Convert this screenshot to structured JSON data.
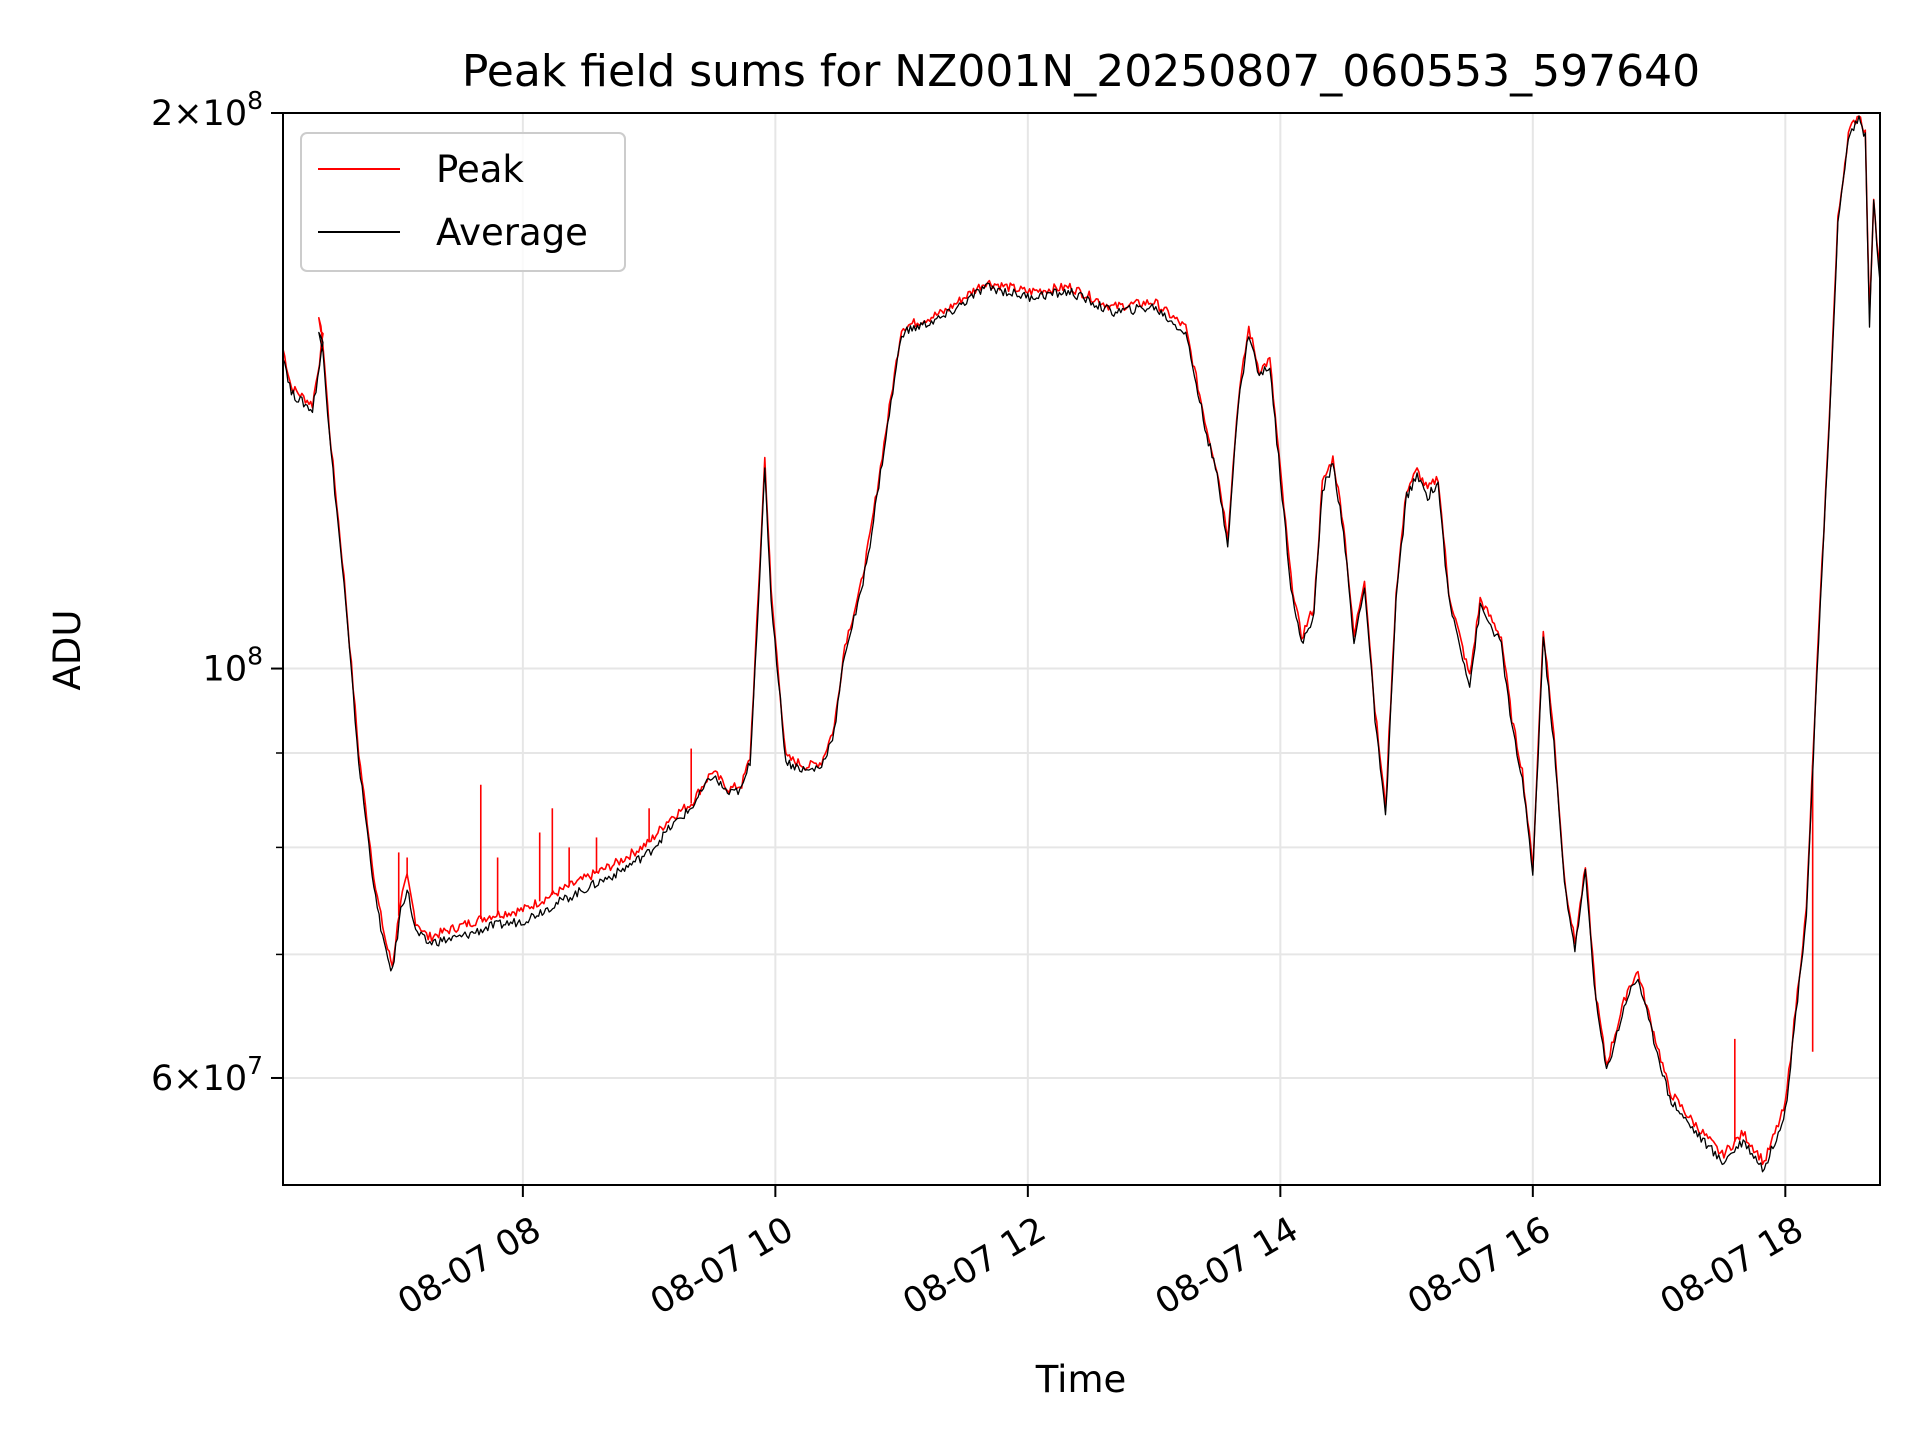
{
  "chart_data": {
    "type": "line",
    "title": "Peak field sums for NZ001N_20250807_060553_597640",
    "xlabel": "Time",
    "ylabel": "ADU",
    "xlim": [
      "2025-08-07 06:06",
      "2025-08-07 18:45"
    ],
    "ylim": [
      52500000,
      200000000
    ],
    "yscale": "log",
    "grid": true,
    "legend_position": "top-left",
    "x_ticks": [
      {
        "value": "2025-08-07 08:00",
        "label": "08-07 08"
      },
      {
        "value": "2025-08-07 10:00",
        "label": "08-07 10"
      },
      {
        "value": "2025-08-07 12:00",
        "label": "08-07 12"
      },
      {
        "value": "2025-08-07 14:00",
        "label": "08-07 14"
      },
      {
        "value": "2025-08-07 16:00",
        "label": "08-07 16"
      },
      {
        "value": "2025-08-07 18:00",
        "label": "08-07 18"
      }
    ],
    "y_ticks_major": [
      {
        "value": 60000000,
        "mantissa": "6",
        "exponent": "7"
      },
      {
        "value": 100000000,
        "mantissa": "",
        "exponent": "8"
      },
      {
        "value": 200000000,
        "mantissa": "2",
        "exponent": "8"
      }
    ],
    "y_ticks_minor": [
      70000000,
      80000000,
      90000000
    ],
    "series": [
      {
        "name": "Peak",
        "color": "#ff0000",
        "x": [
          "2025-08-07 06:06",
          "2025-08-07 06:10",
          "2025-08-07 06:20",
          "2025-08-07 06:25",
          "2025-08-07 06:23",
          "2025-08-07 06:25",
          "2025-08-07 06:28",
          "2025-08-07 06:35",
          "2025-08-07 06:42",
          "2025-08-07 06:50",
          "2025-08-07 06:55",
          "2025-08-07 06:58",
          "2025-08-07 07:02",
          "2025-08-07 07:05",
          "2025-08-07 07:09",
          "2025-08-07 07:15",
          "2025-08-07 07:30",
          "2025-08-07 07:45",
          "2025-08-07 08:00",
          "2025-08-07 08:15",
          "2025-08-07 08:30",
          "2025-08-07 08:45",
          "2025-08-07 09:00",
          "2025-08-07 09:10",
          "2025-08-07 09:20",
          "2025-08-07 09:30",
          "2025-08-07 09:38",
          "2025-08-07 09:44",
          "2025-08-07 09:48",
          "2025-08-07 09:52",
          "2025-08-07 09:55",
          "2025-08-07 09:58",
          "2025-08-07 10:05",
          "2025-08-07 10:15",
          "2025-08-07 10:22",
          "2025-08-07 10:28",
          "2025-08-07 10:33",
          "2025-08-07 10:40",
          "2025-08-07 10:45",
          "2025-08-07 11:00",
          "2025-08-07 11:20",
          "2025-08-07 11:40",
          "2025-08-07 12:00",
          "2025-08-07 12:20",
          "2025-08-07 12:40",
          "2025-08-07 13:00",
          "2025-08-07 13:15",
          "2025-08-07 13:25",
          "2025-08-07 13:30",
          "2025-08-07 13:35",
          "2025-08-07 13:40",
          "2025-08-07 13:45",
          "2025-08-07 13:50",
          "2025-08-07 13:55",
          "2025-08-07 14:00",
          "2025-08-07 14:05",
          "2025-08-07 14:10",
          "2025-08-07 14:16",
          "2025-08-07 14:20",
          "2025-08-07 14:25",
          "2025-08-07 14:30",
          "2025-08-07 14:35",
          "2025-08-07 14:40",
          "2025-08-07 14:45",
          "2025-08-07 14:50",
          "2025-08-07 14:55",
          "2025-08-07 15:00",
          "2025-08-07 15:05",
          "2025-08-07 15:10",
          "2025-08-07 15:15",
          "2025-08-07 15:20",
          "2025-08-07 15:30",
          "2025-08-07 15:35",
          "2025-08-07 15:45",
          "2025-08-07 15:50",
          "2025-08-07 15:55",
          "2025-08-07 16:00",
          "2025-08-07 16:05",
          "2025-08-07 16:10",
          "2025-08-07 16:15",
          "2025-08-07 16:20",
          "2025-08-07 16:25",
          "2025-08-07 16:30",
          "2025-08-07 16:35",
          "2025-08-07 16:45",
          "2025-08-07 16:50",
          "2025-08-07 16:55",
          "2025-08-07 17:00",
          "2025-08-07 17:05",
          "2025-08-07 17:15",
          "2025-08-07 17:30",
          "2025-08-07 17:40",
          "2025-08-07 17:50",
          "2025-08-07 18:00",
          "2025-08-07 18:10",
          "2025-08-07 18:15",
          "2025-08-07 18:20",
          "2025-08-07 18:25",
          "2025-08-07 18:30",
          "2025-08-07 18:35",
          "2025-08-07 18:38",
          "2025-08-07 18:40",
          "2025-08-07 18:42",
          "2025-08-07 18:45"
        ],
        "values": [
          149000000,
          142000000,
          139000000,
          151000000,
          155000000,
          150000000,
          135000000,
          112000000,
          90000000,
          76000000,
          71000000,
          69000000,
          75000000,
          77000000,
          73000000,
          71500000,
          72500000,
          73500000,
          74000000,
          75500000,
          77000000,
          78500000,
          80500000,
          83000000,
          84500000,
          88000000,
          86000000,
          86500000,
          89500000,
          110000000,
          130000000,
          110000000,
          89500000,
          88500000,
          89000000,
          93000000,
          103000000,
          110000000,
          118000000,
          153000000,
          156000000,
          162000000,
          160000000,
          161000000,
          157000000,
          158000000,
          153000000,
          135000000,
          128000000,
          118000000,
          140000000,
          153000000,
          145000000,
          147000000,
          128000000,
          112000000,
          104000000,
          108000000,
          126000000,
          130000000,
          120000000,
          104000000,
          112000000,
          95000000,
          84000000,
          110000000,
          125000000,
          128000000,
          125000000,
          127000000,
          110000000,
          99000000,
          109000000,
          104000000,
          94000000,
          88000000,
          78000000,
          105000000,
          92000000,
          77000000,
          71000000,
          78000000,
          66500000,
          61000000,
          67000000,
          68500000,
          65000000,
          62000000,
          59000000,
          57000000,
          54500000,
          56000000,
          54000000,
          58000000,
          74000000,
          100000000,
          130000000,
          175000000,
          195000000,
          200000000,
          195000000,
          155000000,
          180000000,
          163000000
        ],
        "spikes": [
          {
            "x": "2025-08-07 07:01",
            "value": 79500000
          },
          {
            "x": "2025-08-07 07:05",
            "value": 79000000
          },
          {
            "x": "2025-08-07 07:40",
            "value": 86500000
          },
          {
            "x": "2025-08-07 07:48",
            "value": 79000000
          },
          {
            "x": "2025-08-07 08:08",
            "value": 81500000
          },
          {
            "x": "2025-08-07 08:14",
            "value": 84000000
          },
          {
            "x": "2025-08-07 08:22",
            "value": 80000000
          },
          {
            "x": "2025-08-07 08:35",
            "value": 81000000
          },
          {
            "x": "2025-08-07 09:00",
            "value": 84000000
          },
          {
            "x": "2025-08-07 09:20",
            "value": 90500000
          },
          {
            "x": "2025-08-07 17:36",
            "value": 63000000
          },
          {
            "x": "2025-08-07 18:13",
            "value": 62000000
          }
        ]
      },
      {
        "name": "Average",
        "color": "#000000",
        "x": [
          "2025-08-07 06:06",
          "2025-08-07 06:10",
          "2025-08-07 06:20",
          "2025-08-07 06:25",
          "2025-08-07 06:23",
          "2025-08-07 06:25",
          "2025-08-07 06:28",
          "2025-08-07 06:35",
          "2025-08-07 06:42",
          "2025-08-07 06:50",
          "2025-08-07 06:55",
          "2025-08-07 06:58",
          "2025-08-07 07:02",
          "2025-08-07 07:05",
          "2025-08-07 07:09",
          "2025-08-07 07:15",
          "2025-08-07 07:30",
          "2025-08-07 07:45",
          "2025-08-07 08:00",
          "2025-08-07 08:15",
          "2025-08-07 08:30",
          "2025-08-07 08:45",
          "2025-08-07 09:00",
          "2025-08-07 09:10",
          "2025-08-07 09:20",
          "2025-08-07 09:30",
          "2025-08-07 09:38",
          "2025-08-07 09:44",
          "2025-08-07 09:48",
          "2025-08-07 09:52",
          "2025-08-07 09:55",
          "2025-08-07 09:58",
          "2025-08-07 10:05",
          "2025-08-07 10:15",
          "2025-08-07 10:22",
          "2025-08-07 10:28",
          "2025-08-07 10:33",
          "2025-08-07 10:40",
          "2025-08-07 10:45",
          "2025-08-07 11:00",
          "2025-08-07 11:20",
          "2025-08-07 11:40",
          "2025-08-07 12:00",
          "2025-08-07 12:20",
          "2025-08-07 12:40",
          "2025-08-07 13:00",
          "2025-08-07 13:15",
          "2025-08-07 13:25",
          "2025-08-07 13:30",
          "2025-08-07 13:35",
          "2025-08-07 13:40",
          "2025-08-07 13:45",
          "2025-08-07 13:50",
          "2025-08-07 13:55",
          "2025-08-07 14:00",
          "2025-08-07 14:05",
          "2025-08-07 14:10",
          "2025-08-07 14:16",
          "2025-08-07 14:20",
          "2025-08-07 14:25",
          "2025-08-07 14:30",
          "2025-08-07 14:35",
          "2025-08-07 14:40",
          "2025-08-07 14:45",
          "2025-08-07 14:50",
          "2025-08-07 14:55",
          "2025-08-07 15:00",
          "2025-08-07 15:05",
          "2025-08-07 15:10",
          "2025-08-07 15:15",
          "2025-08-07 15:20",
          "2025-08-07 15:30",
          "2025-08-07 15:35",
          "2025-08-07 15:45",
          "2025-08-07 15:50",
          "2025-08-07 15:55",
          "2025-08-07 16:00",
          "2025-08-07 16:05",
          "2025-08-07 16:10",
          "2025-08-07 16:15",
          "2025-08-07 16:20",
          "2025-08-07 16:25",
          "2025-08-07 16:30",
          "2025-08-07 16:35",
          "2025-08-07 16:45",
          "2025-08-07 16:50",
          "2025-08-07 16:55",
          "2025-08-07 17:00",
          "2025-08-07 17:05",
          "2025-08-07 17:15",
          "2025-08-07 17:30",
          "2025-08-07 17:40",
          "2025-08-07 17:50",
          "2025-08-07 18:00",
          "2025-08-07 18:10",
          "2025-08-07 18:15",
          "2025-08-07 18:20",
          "2025-08-07 18:25",
          "2025-08-07 18:30",
          "2025-08-07 18:35",
          "2025-08-07 18:38",
          "2025-08-07 18:40",
          "2025-08-07 18:42",
          "2025-08-07 18:45"
        ],
        "values": [
          148000000,
          141000000,
          138000000,
          150000000,
          153000000,
          149000000,
          134000000,
          111000000,
          89000000,
          75000000,
          70000000,
          68500000,
          74000000,
          76000000,
          72000000,
          71000000,
          71500000,
          72500000,
          73000000,
          74500000,
          76000000,
          77500000,
          79500000,
          82000000,
          84000000,
          87500000,
          85500000,
          86000000,
          89000000,
          109000000,
          128000000,
          109000000,
          89000000,
          88000000,
          88500000,
          92500000,
          102000000,
          109000000,
          117000000,
          152000000,
          155000000,
          161000000,
          159000000,
          160000000,
          156000000,
          157000000,
          152000000,
          134000000,
          127000000,
          117000000,
          139000000,
          152000000,
          144000000,
          146000000,
          127000000,
          111000000,
          103000000,
          107000000,
          125000000,
          129000000,
          119000000,
          103000000,
          111000000,
          94000000,
          83000000,
          109000000,
          124000000,
          127000000,
          124000000,
          126000000,
          109000000,
          98000000,
          108000000,
          103000000,
          93000000,
          87000000,
          77500000,
          104000000,
          91000000,
          76500000,
          70500000,
          77500000,
          66000000,
          60500000,
          66500000,
          68000000,
          64500000,
          61500000,
          58500000,
          56500000,
          54000000,
          55500000,
          53500000,
          57500000,
          73500000,
          99000000,
          129000000,
          174000000,
          194000000,
          199000000,
          194000000,
          154000000,
          179000000,
          162000000
        ]
      }
    ]
  },
  "legend": {
    "items": [
      {
        "label": "Peak",
        "color": "#ff0000"
      },
      {
        "label": "Average",
        "color": "#000000"
      }
    ]
  }
}
